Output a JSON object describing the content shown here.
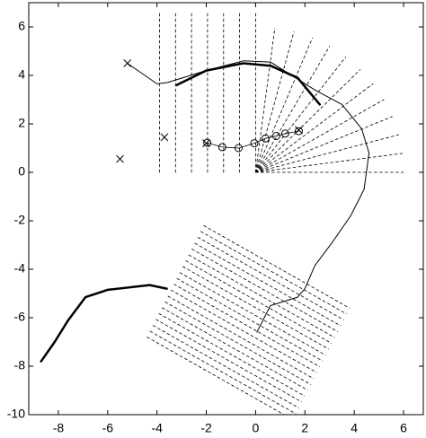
{
  "chart_data": {
    "type": "line",
    "xlim": [
      -9.2,
      6.8
    ],
    "ylim": [
      -10,
      7
    ],
    "xticks": [
      -8,
      -6,
      -4,
      -2,
      0,
      2,
      4,
      6
    ],
    "yticks": [
      -10,
      -8,
      -6,
      -4,
      -2,
      0,
      2,
      4,
      6
    ],
    "series": [
      {
        "style": "dashed",
        "color": "#000000",
        "x": [
          -3.9,
          -3.9,
          null,
          -3.25,
          -3.25,
          null,
          -2.6,
          -2.6,
          null,
          -1.95,
          -1.95,
          null,
          -1.3,
          -1.3,
          null,
          -0.65,
          -0.65,
          null,
          0,
          0
        ],
        "y": [
          0,
          6.6,
          null,
          0,
          6.6,
          null,
          0,
          6.6,
          null,
          0,
          6.6,
          null,
          0,
          6.6,
          null,
          0,
          6.6,
          null,
          0,
          6.6
        ]
      },
      {
        "style": "dashed",
        "color": "#000000",
        "x": [
          0,
          6,
          null,
          0,
          5.95,
          null,
          0,
          5.8,
          null,
          0,
          5.54,
          null,
          0,
          5.2,
          null,
          0,
          4.76,
          null,
          0,
          4.24,
          null,
          0,
          3.65,
          null,
          0,
          3.0,
          null,
          0,
          2.3,
          null,
          0,
          1.55,
          null,
          0,
          0.78
        ],
        "y": [
          0,
          0,
          null,
          0,
          0.78,
          null,
          0,
          1.55,
          null,
          0,
          2.3,
          null,
          0,
          3.0,
          null,
          0,
          3.65,
          null,
          0,
          4.24,
          null,
          0,
          4.76,
          null,
          0,
          5.2,
          null,
          0,
          5.54,
          null,
          0,
          5.8,
          null,
          0,
          5.95
        ]
      },
      {
        "style": "dashed",
        "color": "#000000",
        "x": [
          -2.1,
          3.8,
          null,
          -2.22,
          3.68,
          null,
          -2.34,
          3.56,
          null,
          -2.46,
          3.44,
          null,
          -2.58,
          3.32,
          null,
          -2.71,
          3.19,
          null,
          -2.83,
          3.07,
          null,
          -2.95,
          2.95,
          null,
          -3.07,
          2.83,
          null,
          -3.19,
          2.71,
          null,
          -3.31,
          2.59,
          null,
          -3.43,
          2.47,
          null,
          -3.55,
          2.35,
          null,
          -3.67,
          2.23,
          null,
          -3.79,
          2.11,
          null,
          -3.92,
          1.98,
          null,
          -4.04,
          1.86,
          null,
          -4.16,
          1.74,
          null,
          -4.28,
          1.62,
          null,
          -4.4,
          1.5
        ],
        "y": [
          -2.2,
          -5.6,
          null,
          -2.44,
          -5.84,
          null,
          -2.68,
          -6.08,
          null,
          -2.93,
          -6.33,
          null,
          -3.17,
          -6.57,
          null,
          -3.41,
          -6.81,
          null,
          -3.65,
          -7.05,
          null,
          -3.89,
          -7.29,
          null,
          -4.14,
          -7.54,
          null,
          -4.38,
          -7.78,
          null,
          -4.62,
          -8.02,
          null,
          -4.86,
          -8.26,
          null,
          -5.11,
          -8.51,
          null,
          -5.35,
          -8.75,
          null,
          -5.59,
          -8.99,
          null,
          -5.83,
          -9.23,
          null,
          -6.07,
          -9.47,
          null,
          -6.32,
          -9.72,
          null,
          -6.56,
          -9.96,
          null,
          -6.8,
          -10.2
        ]
      },
      {
        "style": "thin",
        "color": "#000000",
        "x": [
          -5.2,
          -4.0,
          -3.6,
          -2.0,
          -0.5,
          0.6,
          2.4,
          3.5,
          4.3,
          4.6,
          4.4,
          3.85,
          3.1,
          2.4,
          2.0,
          1.7,
          0.6,
          0.05
        ],
        "y": [
          4.5,
          3.65,
          3.7,
          4.2,
          4.6,
          4.55,
          3.4,
          2.8,
          1.8,
          0.8,
          -0.7,
          -1.8,
          -2.9,
          -3.85,
          -4.8,
          -5.15,
          -5.5,
          -6.6
        ]
      },
      {
        "style": "thick",
        "color": "#000000",
        "x": [
          -3.2,
          -2.0,
          -0.5,
          0.6,
          1.7,
          2.6
        ],
        "y": [
          3.6,
          4.2,
          4.5,
          4.4,
          3.9,
          2.8
        ]
      },
      {
        "style": "thick",
        "color": "#000000",
        "x": [
          -8.7,
          -8.15,
          -7.6,
          -6.9,
          -6.0,
          -4.3,
          -3.6
        ],
        "y": [
          -7.8,
          -7.0,
          -6.1,
          -5.15,
          -4.85,
          -4.65,
          -4.8
        ]
      },
      {
        "style": "circles",
        "color": "#000000",
        "x": [
          -1.96,
          -1.35,
          -0.69,
          -0.05,
          0.4,
          0.84,
          1.2,
          1.75
        ],
        "y": [
          1.22,
          1.04,
          1.0,
          1.2,
          1.4,
          1.5,
          1.6,
          1.7
        ]
      },
      {
        "style": "crosses",
        "color": "#000000",
        "x": [
          -5.2,
          -3.7,
          -5.5,
          1.75,
          -2.0
        ],
        "y": [
          4.5,
          1.45,
          0.55,
          1.75,
          1.2
        ]
      }
    ]
  }
}
